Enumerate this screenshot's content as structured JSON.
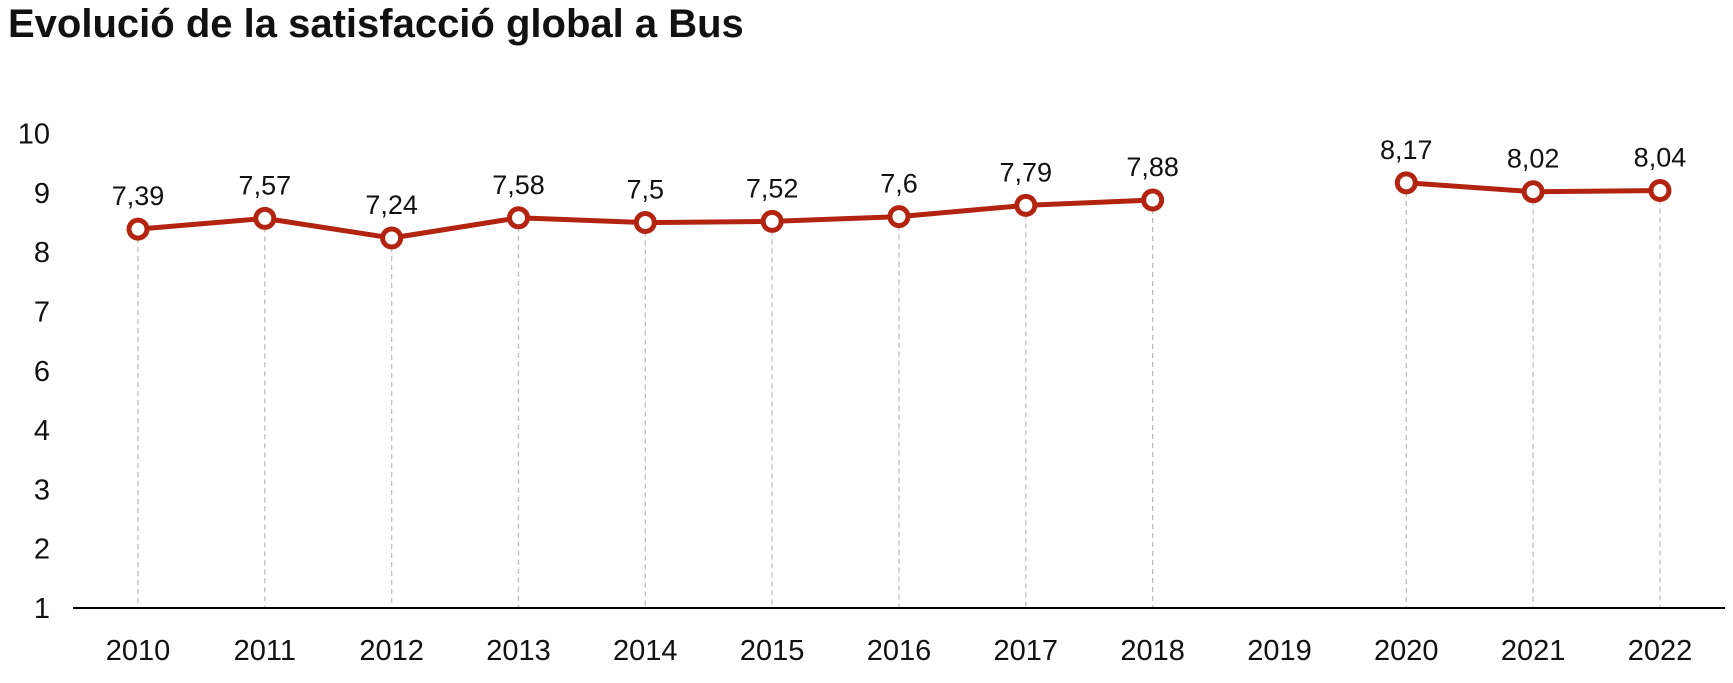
{
  "chart_data": {
    "type": "line",
    "title": "Evolució de la satisfacció global a Bus",
    "xlabel": "",
    "ylabel": "",
    "categories": [
      "2010",
      "2011",
      "2012",
      "2013",
      "2014",
      "2015",
      "2016",
      "2017",
      "2018",
      "2019",
      "2020",
      "2021",
      "2022"
    ],
    "series": [
      {
        "name": "Satisfacció global",
        "values": [
          7.39,
          7.57,
          7.24,
          7.58,
          7.5,
          7.52,
          7.6,
          7.79,
          7.88,
          null,
          8.17,
          8.02,
          8.04
        ],
        "labels": [
          "7,39",
          "7,57",
          "7,24",
          "7,58",
          "7,5",
          "7,52",
          "7,6",
          "7,79",
          "7,88",
          null,
          "8,17",
          "8,02",
          "8,04"
        ],
        "color": "#B22410"
      }
    ],
    "y_ticks": [
      "1",
      "2",
      "3",
      "4",
      "6",
      "7",
      "8",
      "9",
      "10"
    ],
    "grid": "vertical dashed guide lines",
    "legend": "none"
  }
}
